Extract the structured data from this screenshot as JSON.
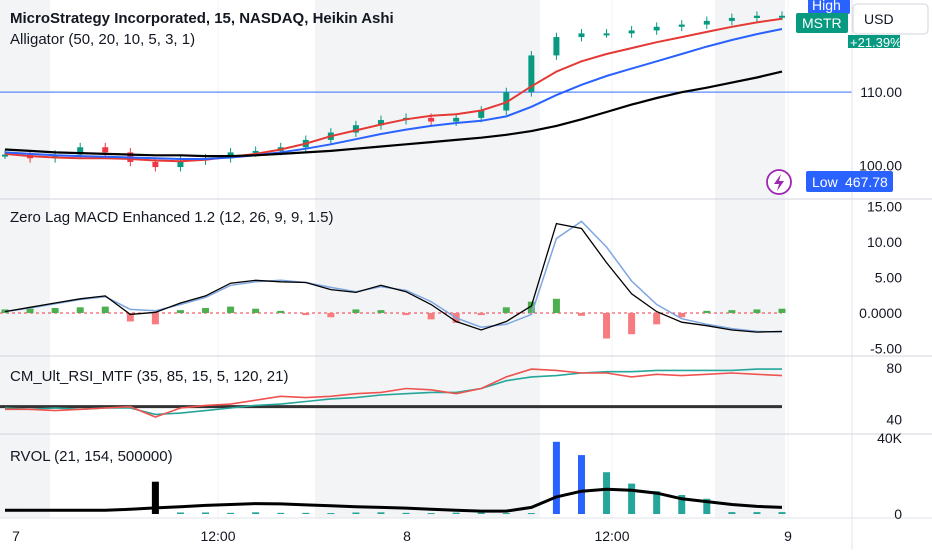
{
  "header": {
    "symbol_title": "MicroStrategy Incorporated, 15, NASDAQ, Heikin Ashi",
    "currency": "USD",
    "symbol_badge": "MSTR",
    "high_label": "High",
    "change_badge": "+21.39%",
    "low_label": "Low",
    "low_value": "467.78"
  },
  "colors": {
    "accent": "#2962ff",
    "up": "#089981",
    "down": "#f23645",
    "badge_green": "#089981",
    "lightning": "#9c27b0"
  },
  "icons": {
    "alert": "lightning-icon"
  },
  "x_axis": {
    "ticks": [
      "7",
      "12:00",
      "8",
      "12:00",
      "9"
    ]
  },
  "chart_data": [
    {
      "type": "candlestick",
      "title": "Alligator (50, 20, 10, 5, 3, 1)",
      "y_ticks": [
        "110.00",
        "100.00"
      ],
      "ylim": [
        96,
        122
      ],
      "horizontal_line": 110,
      "grid": true,
      "series": [
        {
          "values": [
            101.5,
            101,
            101.5,
            102.5,
            101.8,
            100.5,
            99.8,
            100.7,
            101,
            101.8,
            102,
            102.5,
            103.5,
            104.5,
            105.5,
            106.2,
            106.5,
            106,
            106.5,
            107.5,
            110,
            115,
            117.5,
            118,
            118,
            118.4,
            118.9,
            119.2,
            119.7,
            120.1,
            120.4,
            120.4
          ]
        },
        {
          "values": [
            101.6,
            101.3,
            101.1,
            101,
            101,
            100.9,
            100.7,
            100.6,
            100.8,
            101.2,
            101.6,
            102.2,
            103,
            104,
            104.8,
            105.6,
            106.3,
            106.8,
            107,
            107.5,
            108.6,
            110.8,
            112.8,
            114.2,
            115.2,
            116,
            116.8,
            117.5,
            118.2,
            118.9,
            119.5,
            120
          ]
        },
        {
          "values": [
            101.8,
            101.6,
            101.4,
            101.3,
            101.2,
            101.1,
            101,
            100.9,
            100.9,
            101.1,
            101.4,
            101.8,
            102.3,
            102.9,
            103.6,
            104.3,
            104.9,
            105.4,
            105.8,
            106.1,
            106.7,
            108,
            109.6,
            111,
            112.2,
            113.2,
            114.2,
            115.2,
            116.2,
            117.1,
            117.9,
            118.6
          ]
        },
        {
          "values": [
            102.2,
            102,
            101.8,
            101.7,
            101.6,
            101.5,
            101.4,
            101.4,
            101.3,
            101.3,
            101.4,
            101.6,
            101.8,
            102,
            102.3,
            102.6,
            102.9,
            103.2,
            103.5,
            103.8,
            104.2,
            104.7,
            105.4,
            106.3,
            107.3,
            108.3,
            109.2,
            110,
            110.6,
            111.3,
            112,
            112.8
          ]
        }
      ]
    },
    {
      "type": "line",
      "title": "Zero Lag MACD Enhanced 1.2 (12, 26, 9, 9, 1.5)",
      "y_ticks": [
        "15.00",
        "10.00",
        "5.00",
        "0.0000",
        "-5.00"
      ],
      "ylim": [
        -5.5,
        15.5
      ],
      "series": [
        {
          "values": [
            0.2,
            0.8,
            1.4,
            2,
            2.4,
            -0.2,
            0.1,
            1.4,
            2.4,
            4.2,
            4.6,
            4.4,
            4.3,
            3.3,
            2.9,
            3.9,
            3,
            1.2,
            -1.2,
            -2.4,
            -1.2,
            1,
            12.6,
            11.9,
            7.1,
            2.7,
            0.2,
            -1.3,
            -1.8,
            -2.4,
            -2.7,
            -2.6
          ]
        },
        {
          "values": [
            0.2,
            0.7,
            1.3,
            1.9,
            2.3,
            0.5,
            0.3,
            1.2,
            2.2,
            3.9,
            4.4,
            4.6,
            4.3,
            3.6,
            3,
            3.7,
            3.2,
            1.6,
            -0.7,
            -2,
            -1.6,
            -0.2,
            10.5,
            12.9,
            9.3,
            4.5,
            1.2,
            -0.8,
            -1.6,
            -2.2,
            -2.6,
            -2.7
          ]
        },
        {
          "values": [
            0.5,
            0.6,
            0.7,
            0.8,
            0.9,
            -1.2,
            -1.6,
            0.4,
            0.7,
            0.9,
            0.6,
            0.3,
            -0.3,
            -0.6,
            0.5,
            0.4,
            -0.3,
            -0.9,
            -1.4,
            -0.3,
            0.8,
            1.6,
            2,
            -0.4,
            -3.6,
            -3,
            -1.6,
            -0.6,
            0.3,
            0.4,
            0.5,
            0.6
          ]
        }
      ]
    },
    {
      "type": "line",
      "title": "CM_Ult_RSI_MTF (35, 85, 15, 5, 120, 21)",
      "y_ticks": [
        "80",
        "40"
      ],
      "ylim": [
        32,
        86
      ],
      "horizontal_line": 50,
      "series": [
        {
          "values": [
            49,
            48,
            49,
            48,
            49,
            49,
            44,
            45,
            47,
            49,
            51,
            52,
            54,
            56,
            57,
            59,
            60,
            61,
            61,
            64,
            70,
            73,
            74,
            76,
            77,
            77,
            78,
            78,
            78,
            78,
            79,
            79
          ]
        },
        {
          "values": [
            48,
            48,
            47,
            48,
            49,
            50,
            42,
            49,
            51,
            52,
            55,
            58,
            57,
            58,
            60,
            61,
            64,
            63,
            60,
            64,
            73,
            79,
            78,
            76,
            76,
            73,
            75,
            74,
            75,
            76,
            75,
            74
          ]
        }
      ]
    },
    {
      "type": "bar",
      "title": "RVOL (21, 154, 500000)",
      "y_ticks": [
        "40K",
        "0"
      ],
      "ylim": [
        0,
        40000
      ],
      "series": [
        {
          "values": [
            0,
            0,
            0,
            0,
            0,
            0,
            17000,
            800,
            800,
            600,
            900,
            600,
            600,
            500,
            800,
            900,
            600,
            500,
            700,
            700,
            500,
            500,
            38000,
            31000,
            22000,
            16000,
            12000,
            10000,
            8000,
            1000,
            1000,
            1000
          ]
        },
        {
          "values": [
            2000,
            2000,
            2000,
            2000,
            2000,
            2500,
            3200,
            3800,
            4500,
            5000,
            5500,
            5300,
            4800,
            4300,
            3800,
            3500,
            3100,
            2500,
            2000,
            1500,
            1500,
            3500,
            9000,
            12000,
            13000,
            12500,
            11000,
            8000,
            6500,
            5000,
            4000,
            3500
          ]
        }
      ]
    }
  ]
}
